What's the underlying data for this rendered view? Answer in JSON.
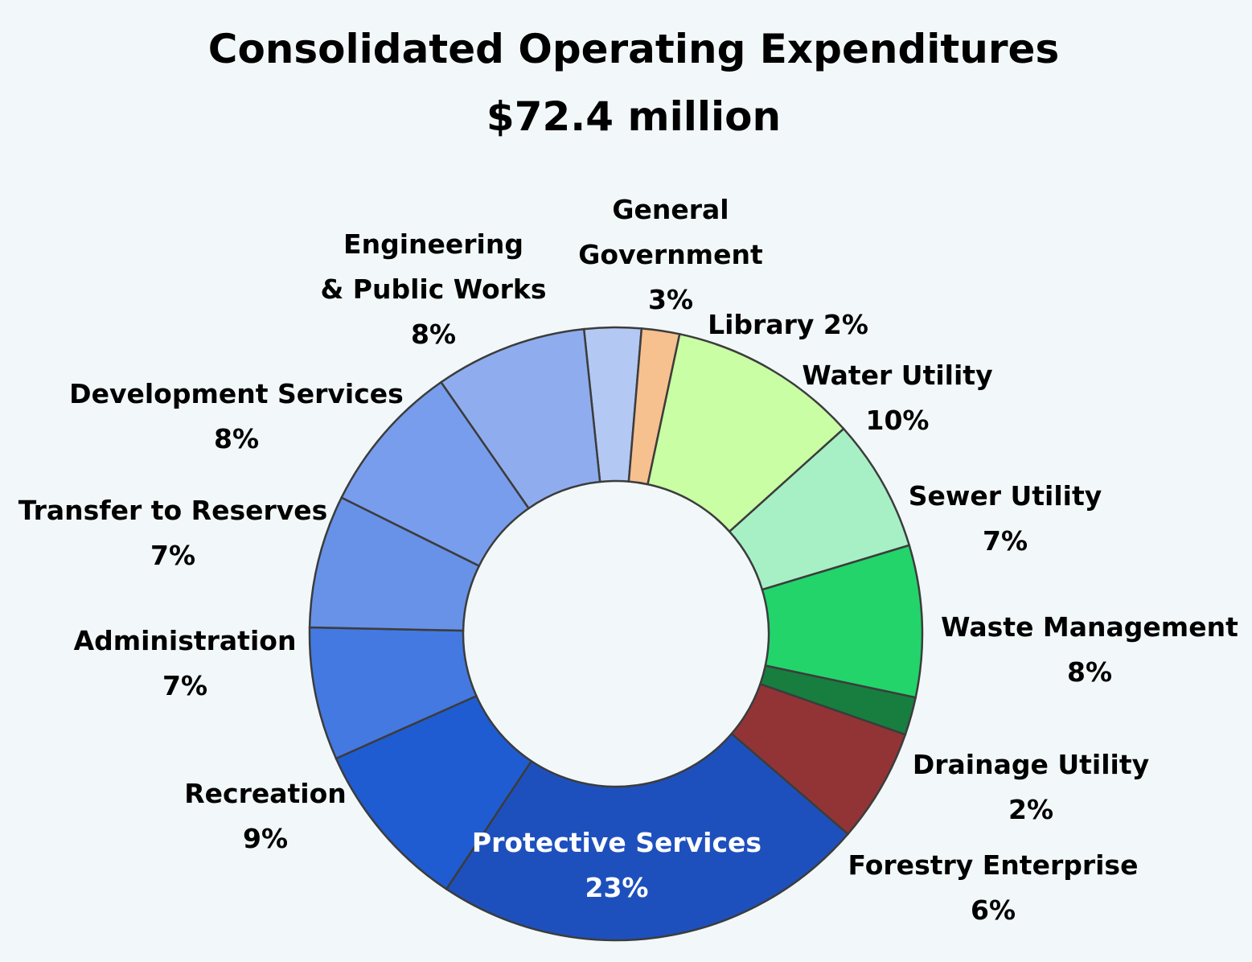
{
  "chart_data": {
    "type": "pie",
    "donut": true,
    "title": "Consolidated Operating Expenditures",
    "subtitle": "$72.4 million",
    "slices": [
      {
        "label": "General Government",
        "value": 3,
        "value_label": "3%",
        "color": "#b4c8f4"
      },
      {
        "label": "Library",
        "value": 2,
        "value_label": "2%",
        "color": "#f6c08f"
      },
      {
        "label": "Water Utility",
        "value": 10,
        "value_label": "10%",
        "color": "#c9fea5"
      },
      {
        "label": "Sewer Utility",
        "value": 7,
        "value_label": "7%",
        "color": "#a7f0c6"
      },
      {
        "label": "Waste Management",
        "value": 8,
        "value_label": "8%",
        "color": "#22d46a"
      },
      {
        "label": "Drainage Utility",
        "value": 2,
        "value_label": "2%",
        "color": "#177e3f"
      },
      {
        "label": "Forestry Enterprise",
        "value": 6,
        "value_label": "6%",
        "color": "#923435"
      },
      {
        "label": "Protective Services",
        "value": 23,
        "value_label": "23%",
        "color": "#1e50bd"
      },
      {
        "label": "Recreation",
        "value": 9,
        "value_label": "9%",
        "color": "#1f5cd2"
      },
      {
        "label": "Administration",
        "value": 7,
        "value_label": "7%",
        "color": "#4479e2"
      },
      {
        "label": "Transfer to Reserves",
        "value": 7,
        "value_label": "7%",
        "color": "#6792e8"
      },
      {
        "label": "Development Services",
        "value": 8,
        "value_label": "8%",
        "color": "#789ded"
      },
      {
        "label": "Engineering & Public Works",
        "value": 8,
        "value_label": "8%",
        "color": "#8fadee"
      }
    ]
  }
}
